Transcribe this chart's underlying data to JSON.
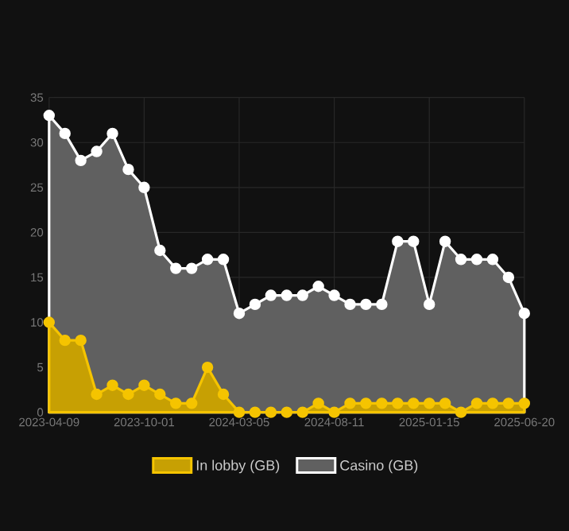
{
  "chart_data": {
    "type": "area",
    "categories": [
      "2023-04-09",
      null,
      null,
      null,
      null,
      null,
      "2023-10-01",
      null,
      null,
      null,
      null,
      null,
      "2024-03-05",
      null,
      null,
      null,
      null,
      null,
      "2024-08-11",
      null,
      null,
      null,
      null,
      null,
      "2025-01-15",
      null,
      null,
      null,
      null,
      null,
      "2025-06-20"
    ],
    "series": [
      {
        "name": "In lobby (GB)",
        "color": "#f5c400",
        "values": [
          10,
          8,
          8,
          2,
          3,
          2,
          3,
          2,
          1,
          1,
          5,
          2,
          0,
          0,
          0,
          0,
          0,
          1,
          0,
          1,
          1,
          1,
          1,
          1,
          1,
          1,
          0,
          1,
          1,
          1,
          1
        ]
      },
      {
        "name": "Casino (GB)",
        "color": "#ffffff",
        "values": [
          33,
          31,
          28,
          29,
          31,
          27,
          25,
          18,
          16,
          16,
          17,
          17,
          11,
          12,
          13,
          13,
          13,
          14,
          13,
          12,
          12,
          12,
          19,
          19,
          12,
          19,
          17,
          17,
          17,
          15,
          11
        ]
      }
    ],
    "ylim": [
      0,
      35
    ],
    "yticks": [
      0,
      5,
      10,
      15,
      20,
      25,
      30,
      35
    ],
    "grid": true,
    "legend": "bottom",
    "marker": "circle",
    "line_style": "solid"
  }
}
